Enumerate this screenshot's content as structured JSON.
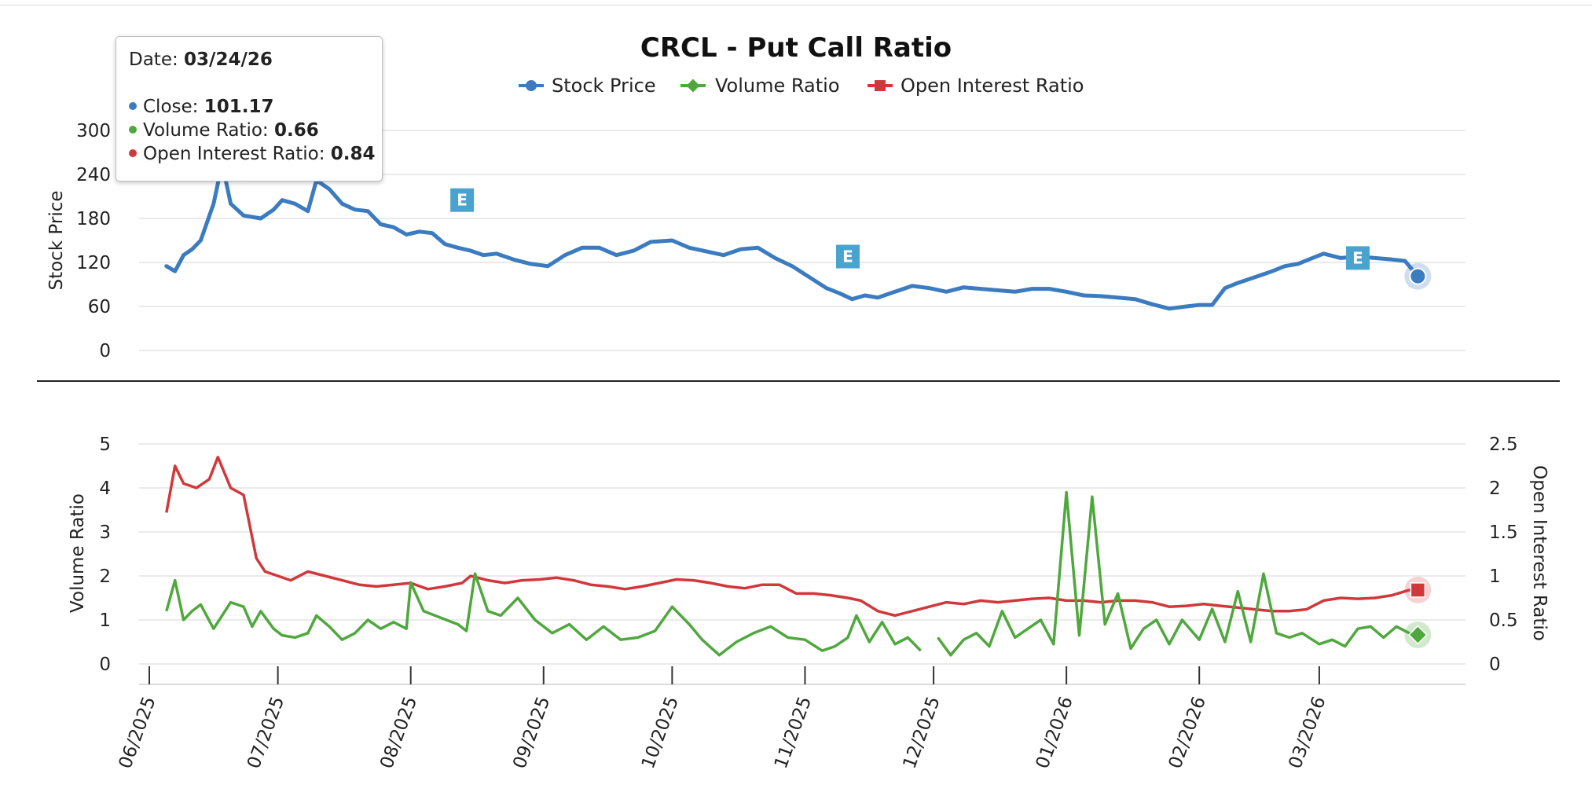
{
  "chart_data": [
    {
      "type": "line",
      "title": "CRCL - Put Call Ratio",
      "legend": {
        "placement": "top",
        "items": [
          {
            "name": "Stock Price",
            "color": "#3b7bbf",
            "marker": "circle"
          },
          {
            "name": "Volume Ratio",
            "color": "#4fa83d",
            "marker": "diamond"
          },
          {
            "name": "Open Interest Ratio",
            "color": "#d0383b",
            "marker": "square"
          }
        ]
      },
      "ylabel": "Stock Price",
      "ylim": [
        0,
        300
      ],
      "yticks": [
        "0",
        "60",
        "120",
        "180",
        "240",
        "300"
      ],
      "grid": true,
      "series": [
        {
          "name": "Stock Price",
          "color": "#3b7bbf",
          "x": [
            "2025-06-05",
            "2025-06-07",
            "2025-06-09",
            "2025-06-11",
            "2025-06-13",
            "2025-06-16",
            "2025-06-18",
            "2025-06-20",
            "2025-06-23",
            "2025-06-25",
            "2025-06-27",
            "2025-06-30",
            "2025-07-02",
            "2025-07-05",
            "2025-07-08",
            "2025-07-10",
            "2025-07-13",
            "2025-07-16",
            "2025-07-19",
            "2025-07-22",
            "2025-07-25",
            "2025-07-28",
            "2025-07-31",
            "2025-08-03",
            "2025-08-06",
            "2025-08-09",
            "2025-08-12",
            "2025-08-15",
            "2025-08-18",
            "2025-08-21",
            "2025-08-25",
            "2025-08-29",
            "2025-09-02",
            "2025-09-06",
            "2025-09-10",
            "2025-09-14",
            "2025-09-18",
            "2025-09-22",
            "2025-09-26",
            "2025-10-01",
            "2025-10-05",
            "2025-10-09",
            "2025-10-13",
            "2025-10-17",
            "2025-10-21",
            "2025-10-25",
            "2025-10-29",
            "2025-11-02",
            "2025-11-06",
            "2025-11-09",
            "2025-11-12",
            "2025-11-15",
            "2025-11-18",
            "2025-11-22",
            "2025-11-26",
            "2025-11-30",
            "2025-12-04",
            "2025-12-08",
            "2025-12-12",
            "2025-12-16",
            "2025-12-20",
            "2025-12-24",
            "2025-12-28",
            "2026-01-01",
            "2026-01-05",
            "2026-01-09",
            "2026-01-13",
            "2026-01-17",
            "2026-01-21",
            "2026-01-25",
            "2026-01-29",
            "2026-02-01",
            "2026-02-04",
            "2026-02-07",
            "2026-02-10",
            "2026-02-14",
            "2026-02-18",
            "2026-02-21",
            "2026-02-24",
            "2026-02-27",
            "2026-03-02",
            "2026-03-06",
            "2026-03-10",
            "2026-03-14",
            "2026-03-18",
            "2026-03-21",
            "2026-03-24"
          ],
          "values": [
            115,
            108,
            130,
            138,
            150,
            200,
            255,
            200,
            184,
            182,
            180,
            192,
            205,
            200,
            190,
            232,
            220,
            200,
            192,
            190,
            172,
            168,
            158,
            162,
            160,
            145,
            140,
            136,
            130,
            132,
            124,
            118,
            115,
            130,
            140,
            140,
            130,
            136,
            148,
            150,
            140,
            135,
            130,
            138,
            140,
            126,
            115,
            100,
            85,
            78,
            70,
            75,
            72,
            80,
            88,
            85,
            80,
            86,
            84,
            82,
            80,
            84,
            84,
            80,
            75,
            74,
            72,
            70,
            63,
            57,
            60,
            62,
            62,
            85,
            92,
            100,
            108,
            115,
            118,
            125,
            132,
            126,
            128,
            126,
            124,
            122,
            101.17
          ]
        }
      ],
      "markers": [
        {
          "label": "E",
          "x": "2025-08-13",
          "y": 205
        },
        {
          "label": "E",
          "x": "2025-11-11",
          "y": 128
        },
        {
          "label": "E",
          "x": "2026-03-10",
          "y": 126
        }
      ]
    },
    {
      "type": "line",
      "ylabel": "Volume Ratio",
      "y2label": "Open Interest Ratio",
      "ylim": [
        0,
        5
      ],
      "y2lim": [
        0,
        2.5
      ],
      "yticks": [
        "0",
        "1",
        "2",
        "3",
        "4",
        "5"
      ],
      "y2ticks": [
        "0",
        "0.5",
        "1",
        "1.5",
        "2",
        "2.5"
      ],
      "xticks": [
        "06/2025",
        "07/2025",
        "08/2025",
        "09/2025",
        "10/2025",
        "11/2025",
        "12/2025",
        "01/2026",
        "02/2026",
        "03/2026"
      ],
      "grid": true,
      "series": [
        {
          "name": "Volume Ratio",
          "color": "#4fa83d",
          "axis": "left",
          "x": [
            "2025-06-05",
            "2025-06-07",
            "2025-06-09",
            "2025-06-11",
            "2025-06-13",
            "2025-06-16",
            "2025-06-18",
            "2025-06-20",
            "2025-06-23",
            "2025-06-25",
            "2025-06-27",
            "2025-06-30",
            "2025-07-02",
            "2025-07-05",
            "2025-07-08",
            "2025-07-10",
            "2025-07-13",
            "2025-07-16",
            "2025-07-19",
            "2025-07-22",
            "2025-07-25",
            "2025-07-28",
            "2025-07-31",
            "2025-08-01",
            "2025-08-04",
            "2025-08-08",
            "2025-08-12",
            "2025-08-14",
            "2025-08-16",
            "2025-08-19",
            "2025-08-22",
            "2025-08-26",
            "2025-08-30",
            "2025-09-03",
            "2025-09-07",
            "2025-09-11",
            "2025-09-15",
            "2025-09-19",
            "2025-09-23",
            "2025-09-27",
            "2025-10-01",
            "2025-10-05",
            "2025-10-08",
            "2025-10-12",
            "2025-10-16",
            "2025-10-20",
            "2025-10-24",
            "2025-10-28",
            "2025-11-01",
            "2025-11-05",
            "2025-11-08",
            "2025-11-11",
            "2025-11-13",
            "2025-11-16",
            "2025-11-19",
            "2025-11-22",
            "2025-11-25",
            "2025-11-28",
            null,
            "2025-12-02",
            "2025-12-05",
            "2025-12-08",
            "2025-12-11",
            "2025-12-14",
            "2025-12-17",
            "2025-12-20",
            "2025-12-23",
            "2025-12-26",
            "2025-12-29",
            "2026-01-01",
            "2026-01-04",
            "2026-01-07",
            "2026-01-10",
            "2026-01-13",
            "2026-01-16",
            "2026-01-19",
            "2026-01-22",
            "2026-01-25",
            "2026-01-28",
            "2026-02-01",
            "2026-02-04",
            "2026-02-07",
            "2026-02-10",
            "2026-02-13",
            "2026-02-16",
            "2026-02-19",
            "2026-02-22",
            "2026-02-25",
            "2026-03-01",
            "2026-03-04",
            "2026-03-07",
            "2026-03-10",
            "2026-03-13",
            "2026-03-16",
            "2026-03-19",
            "2026-03-22",
            "2026-03-24"
          ],
          "values": [
            1.2,
            1.9,
            1.0,
            1.2,
            1.35,
            0.8,
            1.1,
            1.4,
            1.3,
            0.85,
            1.2,
            0.8,
            0.65,
            0.6,
            0.7,
            1.1,
            0.85,
            0.55,
            0.7,
            1.0,
            0.8,
            0.95,
            0.8,
            1.85,
            1.2,
            1.05,
            0.9,
            0.75,
            2.05,
            1.2,
            1.1,
            1.5,
            1.0,
            0.7,
            0.9,
            0.55,
            0.85,
            0.55,
            0.6,
            0.75,
            1.3,
            0.9,
            0.55,
            0.2,
            0.5,
            0.7,
            0.85,
            0.6,
            0.55,
            0.3,
            0.4,
            0.6,
            1.1,
            0.5,
            0.95,
            0.45,
            0.6,
            0.3,
            null,
            0.6,
            0.2,
            0.55,
            0.7,
            0.4,
            1.2,
            0.6,
            0.8,
            1.0,
            0.45,
            3.9,
            0.65,
            3.8,
            0.9,
            1.6,
            0.35,
            0.8,
            1.0,
            0.45,
            1.0,
            0.55,
            1.25,
            0.5,
            1.65,
            0.5,
            2.05,
            0.7,
            0.6,
            0.7,
            0.45,
            0.55,
            0.4,
            0.8,
            0.85,
            0.6,
            0.85,
            0.7,
            0.66
          ]
        },
        {
          "name": "Open Interest Ratio",
          "color": "#d0383b",
          "axis": "right",
          "x": [
            "2025-06-05",
            "2025-06-07",
            "2025-06-09",
            "2025-06-12",
            "2025-06-15",
            "2025-06-17",
            "2025-06-20",
            "2025-06-23",
            "2025-06-26",
            "2025-06-28",
            "2025-07-01",
            "2025-07-04",
            "2025-07-08",
            "2025-07-12",
            "2025-07-16",
            "2025-07-20",
            "2025-07-24",
            "2025-07-28",
            "2025-08-01",
            "2025-08-05",
            "2025-08-09",
            "2025-08-13",
            "2025-08-15",
            "2025-08-19",
            "2025-08-23",
            "2025-08-27",
            "2025-08-31",
            "2025-09-04",
            "2025-09-08",
            "2025-09-12",
            "2025-09-16",
            "2025-09-20",
            "2025-09-24",
            "2025-09-28",
            "2025-10-02",
            "2025-10-06",
            "2025-10-10",
            "2025-10-14",
            "2025-10-18",
            "2025-10-22",
            "2025-10-26",
            "2025-10-30",
            "2025-11-03",
            "2025-11-07",
            "2025-11-11",
            "2025-11-14",
            "2025-11-18",
            "2025-11-22",
            "2025-11-26",
            "2025-11-30",
            "2025-12-04",
            "2025-12-08",
            "2025-12-12",
            "2025-12-16",
            "2025-12-20",
            "2025-12-24",
            "2025-12-28",
            "2026-01-01",
            "2026-01-05",
            "2026-01-09",
            "2026-01-13",
            "2026-01-17",
            "2026-01-21",
            "2026-01-25",
            "2026-01-29",
            "2026-02-02",
            "2026-02-06",
            "2026-02-10",
            "2026-02-14",
            "2026-02-18",
            "2026-02-22",
            "2026-02-26",
            "2026-03-02",
            "2026-03-06",
            "2026-03-10",
            "2026-03-14",
            "2026-03-18",
            "2026-03-22",
            "2026-03-24"
          ],
          "values": [
            1.72,
            2.25,
            2.05,
            2.0,
            2.1,
            2.35,
            2.0,
            1.92,
            1.2,
            1.05,
            1.0,
            0.95,
            1.05,
            1.0,
            0.95,
            0.9,
            0.88,
            0.9,
            0.92,
            0.85,
            0.88,
            0.92,
            1.0,
            0.95,
            0.92,
            0.95,
            0.96,
            0.98,
            0.95,
            0.9,
            0.88,
            0.85,
            0.88,
            0.92,
            0.96,
            0.95,
            0.92,
            0.88,
            0.86,
            0.9,
            0.9,
            0.8,
            0.8,
            0.78,
            0.75,
            0.72,
            0.6,
            0.55,
            0.6,
            0.65,
            0.7,
            0.68,
            0.72,
            0.7,
            0.72,
            0.74,
            0.75,
            0.72,
            0.72,
            0.7,
            0.72,
            0.72,
            0.7,
            0.65,
            0.66,
            0.68,
            0.66,
            0.64,
            0.62,
            0.6,
            0.6,
            0.62,
            0.72,
            0.75,
            0.74,
            0.75,
            0.78,
            0.84,
            0.84
          ]
        }
      ]
    }
  ],
  "tooltip": {
    "date_label": "Date:",
    "date_value": "03/24/26",
    "rows": [
      {
        "label": "Close:",
        "value": "101.17",
        "color": "#3b7bbf"
      },
      {
        "label": "Volume Ratio:",
        "value": "0.66",
        "color": "#4fa83d"
      },
      {
        "label": "Open Interest Ratio:",
        "value": "0.84",
        "color": "#d0383b"
      }
    ]
  }
}
